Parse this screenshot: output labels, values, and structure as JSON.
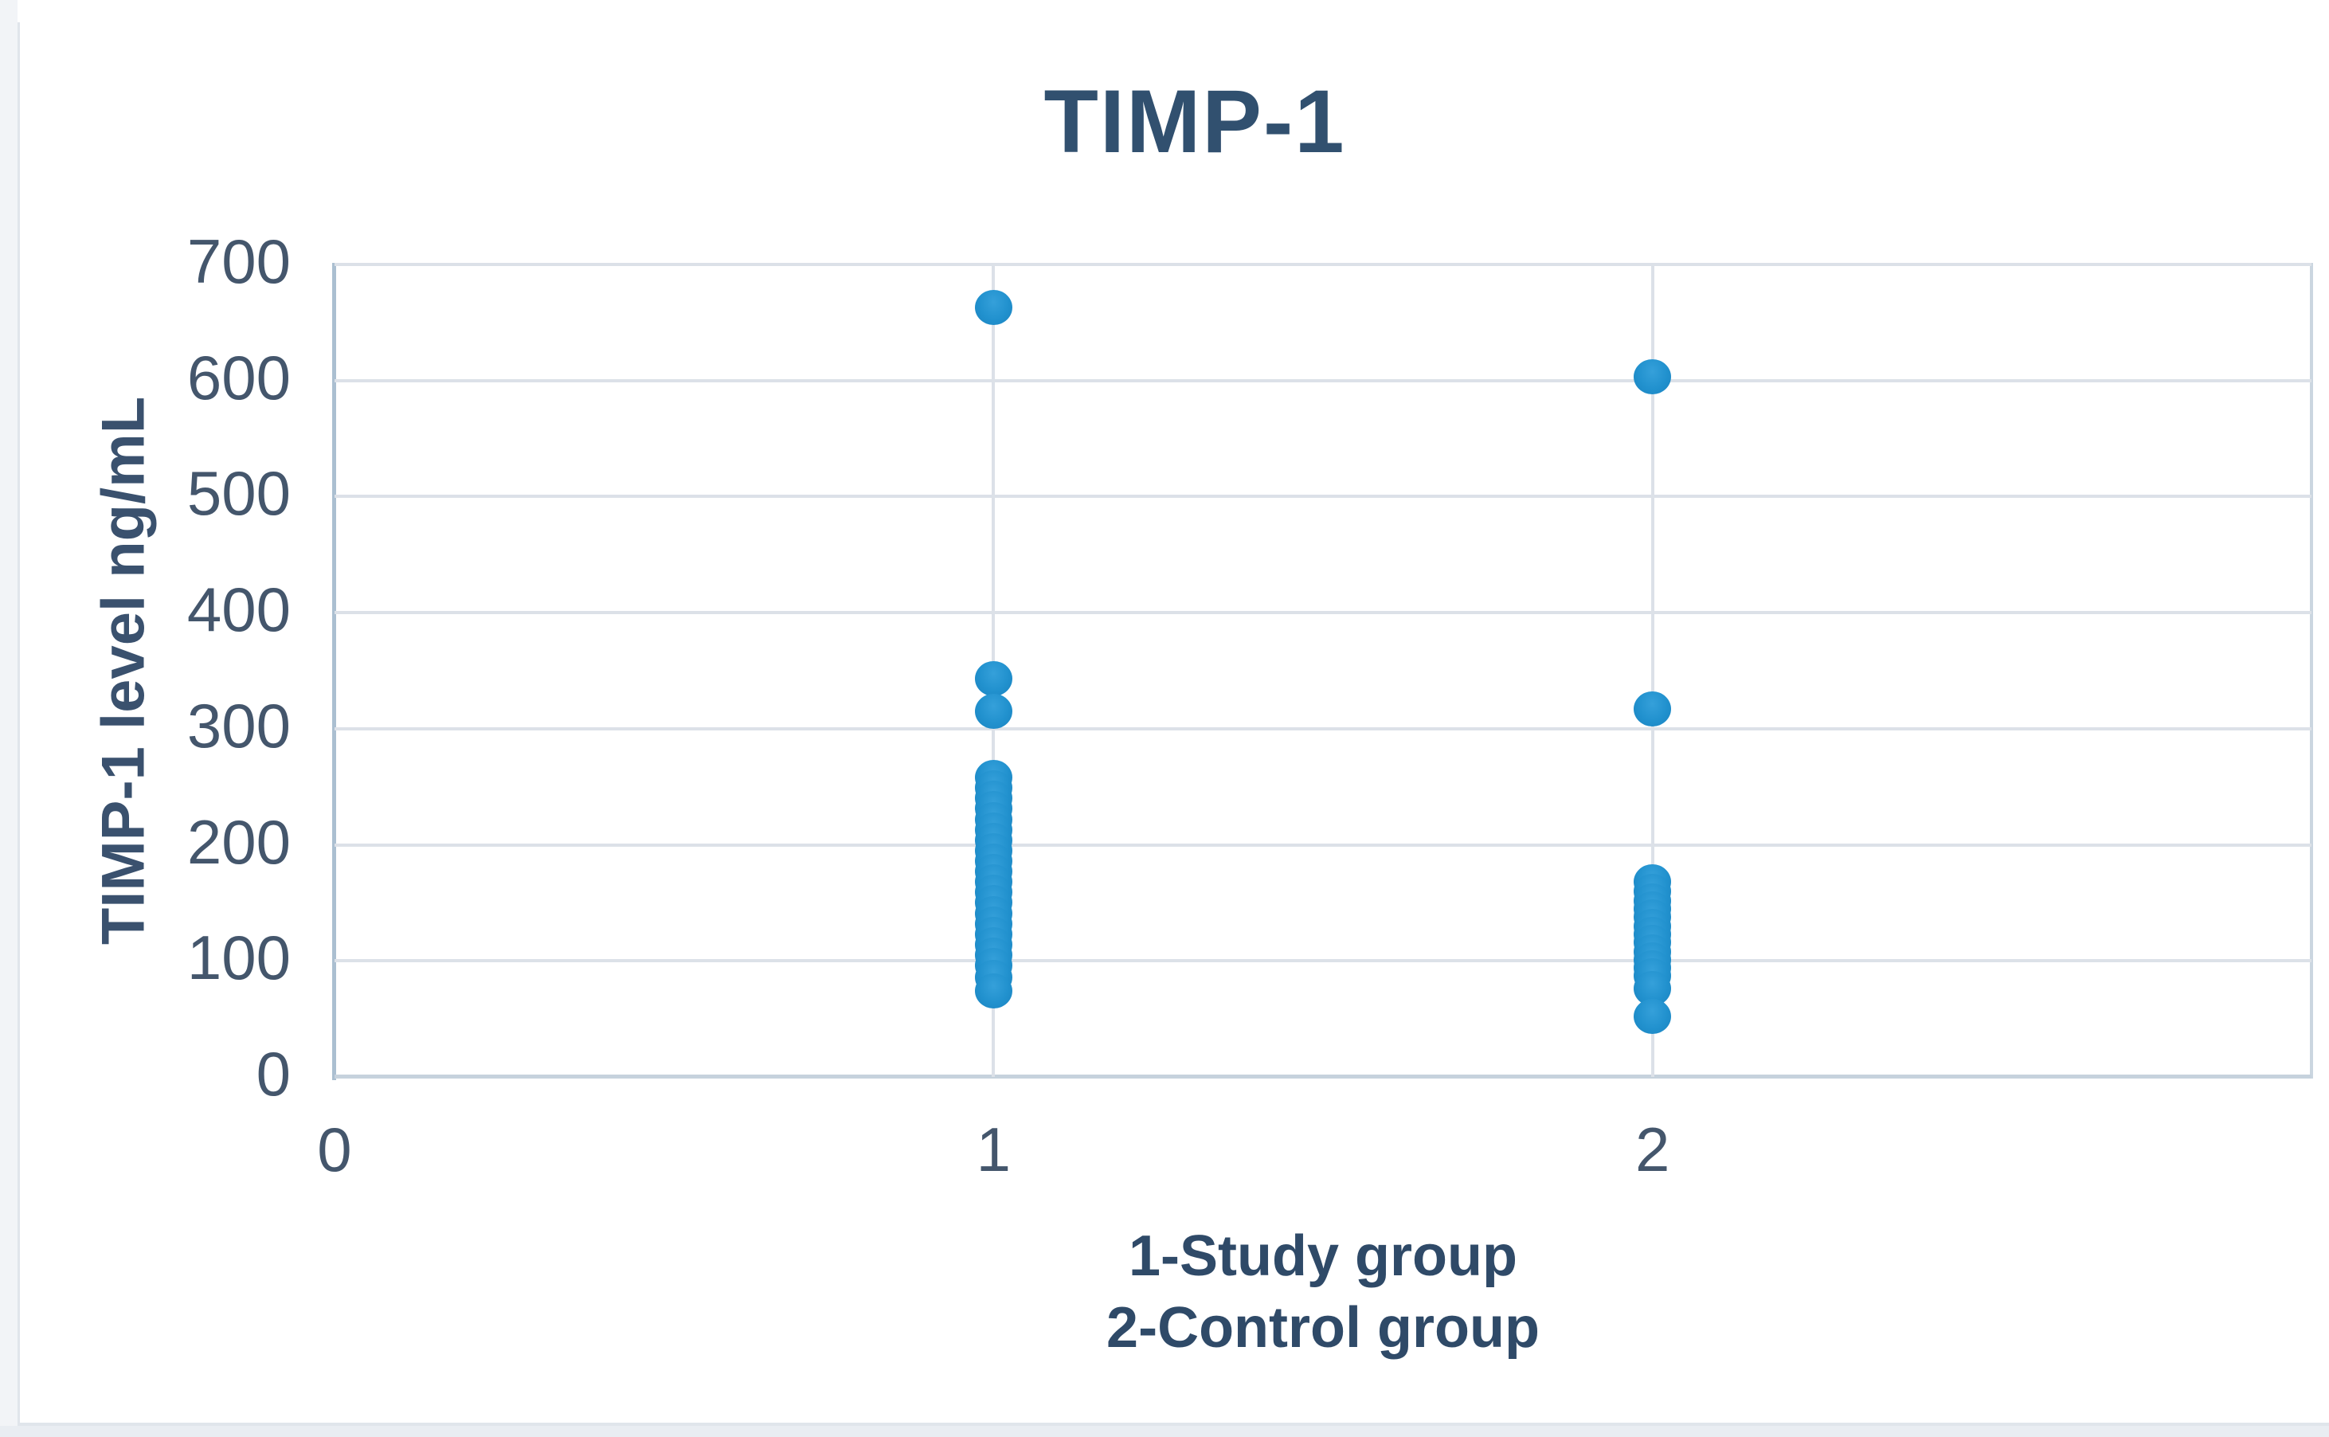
{
  "chart": {
    "title": "TIMP-1",
    "y_axis": {
      "title": "TIMP-1 level ng/mL"
    },
    "caption": {
      "line1": "1-Study group",
      "line2": "2-Control group"
    },
    "colors": {
      "background": "#FFFFFF",
      "marker": "#2191CE",
      "marker_edge": "#1B83BF",
      "title_text": "#31506F",
      "tick_text": "#44566C",
      "axis_title_text": "#3A516E",
      "caption_text": "#2F4A68",
      "gridline": "#DCE1E8",
      "axis_line": "#B9C8D6",
      "page_edge": "#E0E5EB"
    }
  },
  "chart_data": {
    "type": "scatter",
    "title": "TIMP-1",
    "ylabel": "TIMP-1 level ng/mL",
    "xlabel_lines": [
      "1-Study group",
      "2-Control group"
    ],
    "xlim": [
      0,
      3
    ],
    "ylim": [
      0,
      700
    ],
    "x_ticks": [
      0,
      1,
      2
    ],
    "y_ticks": [
      0,
      100,
      200,
      300,
      400,
      500,
      600,
      700
    ],
    "grid": true,
    "legend": "none",
    "marker_color": "#2191CE",
    "series": [
      {
        "name": "Study group",
        "x": 1,
        "y_values": [
          663,
          343,
          315,
          258,
          249,
          240,
          231,
          222,
          213,
          204,
          195,
          186,
          177,
          168,
          159,
          150,
          141,
          132,
          123,
          114,
          105,
          96,
          86,
          74
        ]
      },
      {
        "name": "Control group",
        "x": 2,
        "y_values": [
          603,
          317,
          168,
          160,
          152,
          145,
          138,
          130,
          123,
          116,
          108,
          101,
          94,
          87,
          76,
          52
        ]
      }
    ]
  }
}
